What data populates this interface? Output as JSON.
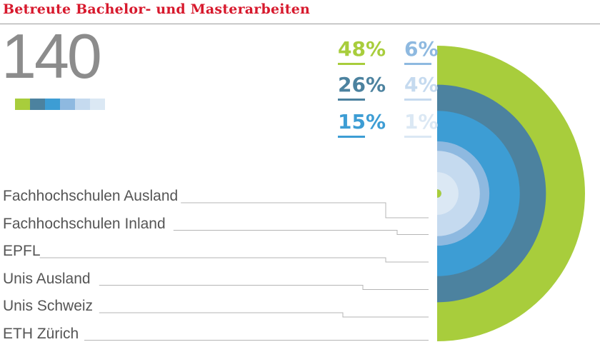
{
  "title": "Betreute Bachelor- und Masterarbeiten",
  "total": "140",
  "colors": [
    "#a8cd3c",
    "#4c829f",
    "#3d9dd4",
    "#8eb9e0",
    "#c5daef",
    "#dbe8f4"
  ],
  "percent_labels": [
    "48",
    "26",
    "15",
    "6",
    "4",
    "1"
  ],
  "percent_sign": "%",
  "chart_data": {
    "type": "pie",
    "title": "Betreute Bachelor- und Masterarbeiten",
    "total": 140,
    "unit": "%",
    "categories": [
      "ETH Zürich",
      "Unis Schweiz",
      "Unis Ausland",
      "EPFL",
      "Fachhochschulen Inland",
      "Fachhochschulen Ausland"
    ],
    "values": [
      48,
      26,
      15,
      6,
      4,
      1
    ],
    "colors": [
      "#a8cd3c",
      "#4c829f",
      "#3d9dd4",
      "#8eb9e0",
      "#c5daef",
      "#dbe8f4"
    ]
  }
}
